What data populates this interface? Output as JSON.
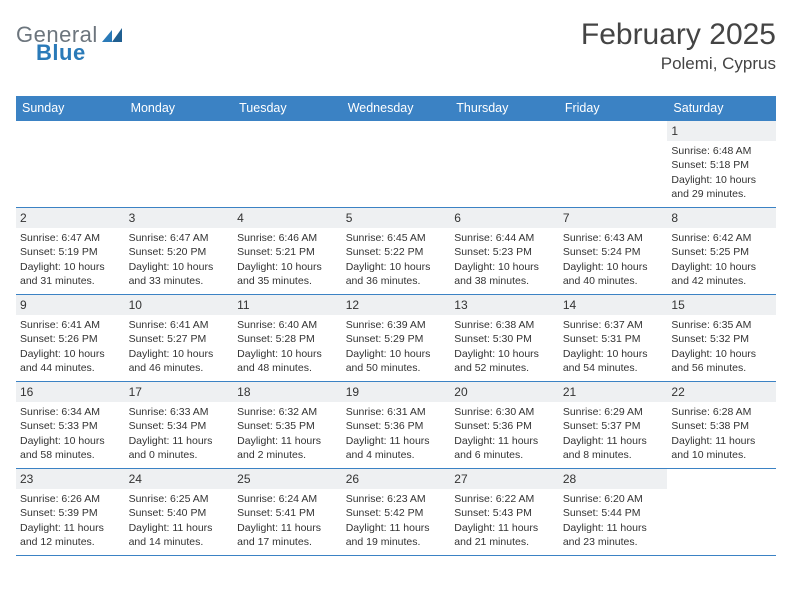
{
  "logo": {
    "text1": "General",
    "text2": "Blue"
  },
  "title": "February 2025",
  "location": "Polemi, Cyprus",
  "colors": {
    "header_bar": "#3b82c4",
    "daynum_bg": "#eef0f2",
    "logo_gray": "#6c757d",
    "logo_blue": "#2a7ab8",
    "rule": "#3b82c4",
    "text": "#333333",
    "bg": "#ffffff"
  },
  "days_of_week": [
    "Sunday",
    "Monday",
    "Tuesday",
    "Wednesday",
    "Thursday",
    "Friday",
    "Saturday"
  ],
  "weeks": [
    [
      {
        "n": "",
        "sunrise": "",
        "sunset": "",
        "daylight": ""
      },
      {
        "n": "",
        "sunrise": "",
        "sunset": "",
        "daylight": ""
      },
      {
        "n": "",
        "sunrise": "",
        "sunset": "",
        "daylight": ""
      },
      {
        "n": "",
        "sunrise": "",
        "sunset": "",
        "daylight": ""
      },
      {
        "n": "",
        "sunrise": "",
        "sunset": "",
        "daylight": ""
      },
      {
        "n": "",
        "sunrise": "",
        "sunset": "",
        "daylight": ""
      },
      {
        "n": "1",
        "sunrise": "Sunrise: 6:48 AM",
        "sunset": "Sunset: 5:18 PM",
        "daylight": "Daylight: 10 hours and 29 minutes."
      }
    ],
    [
      {
        "n": "2",
        "sunrise": "Sunrise: 6:47 AM",
        "sunset": "Sunset: 5:19 PM",
        "daylight": "Daylight: 10 hours and 31 minutes."
      },
      {
        "n": "3",
        "sunrise": "Sunrise: 6:47 AM",
        "sunset": "Sunset: 5:20 PM",
        "daylight": "Daylight: 10 hours and 33 minutes."
      },
      {
        "n": "4",
        "sunrise": "Sunrise: 6:46 AM",
        "sunset": "Sunset: 5:21 PM",
        "daylight": "Daylight: 10 hours and 35 minutes."
      },
      {
        "n": "5",
        "sunrise": "Sunrise: 6:45 AM",
        "sunset": "Sunset: 5:22 PM",
        "daylight": "Daylight: 10 hours and 36 minutes."
      },
      {
        "n": "6",
        "sunrise": "Sunrise: 6:44 AM",
        "sunset": "Sunset: 5:23 PM",
        "daylight": "Daylight: 10 hours and 38 minutes."
      },
      {
        "n": "7",
        "sunrise": "Sunrise: 6:43 AM",
        "sunset": "Sunset: 5:24 PM",
        "daylight": "Daylight: 10 hours and 40 minutes."
      },
      {
        "n": "8",
        "sunrise": "Sunrise: 6:42 AM",
        "sunset": "Sunset: 5:25 PM",
        "daylight": "Daylight: 10 hours and 42 minutes."
      }
    ],
    [
      {
        "n": "9",
        "sunrise": "Sunrise: 6:41 AM",
        "sunset": "Sunset: 5:26 PM",
        "daylight": "Daylight: 10 hours and 44 minutes."
      },
      {
        "n": "10",
        "sunrise": "Sunrise: 6:41 AM",
        "sunset": "Sunset: 5:27 PM",
        "daylight": "Daylight: 10 hours and 46 minutes."
      },
      {
        "n": "11",
        "sunrise": "Sunrise: 6:40 AM",
        "sunset": "Sunset: 5:28 PM",
        "daylight": "Daylight: 10 hours and 48 minutes."
      },
      {
        "n": "12",
        "sunrise": "Sunrise: 6:39 AM",
        "sunset": "Sunset: 5:29 PM",
        "daylight": "Daylight: 10 hours and 50 minutes."
      },
      {
        "n": "13",
        "sunrise": "Sunrise: 6:38 AM",
        "sunset": "Sunset: 5:30 PM",
        "daylight": "Daylight: 10 hours and 52 minutes."
      },
      {
        "n": "14",
        "sunrise": "Sunrise: 6:37 AM",
        "sunset": "Sunset: 5:31 PM",
        "daylight": "Daylight: 10 hours and 54 minutes."
      },
      {
        "n": "15",
        "sunrise": "Sunrise: 6:35 AM",
        "sunset": "Sunset: 5:32 PM",
        "daylight": "Daylight: 10 hours and 56 minutes."
      }
    ],
    [
      {
        "n": "16",
        "sunrise": "Sunrise: 6:34 AM",
        "sunset": "Sunset: 5:33 PM",
        "daylight": "Daylight: 10 hours and 58 minutes."
      },
      {
        "n": "17",
        "sunrise": "Sunrise: 6:33 AM",
        "sunset": "Sunset: 5:34 PM",
        "daylight": "Daylight: 11 hours and 0 minutes."
      },
      {
        "n": "18",
        "sunrise": "Sunrise: 6:32 AM",
        "sunset": "Sunset: 5:35 PM",
        "daylight": "Daylight: 11 hours and 2 minutes."
      },
      {
        "n": "19",
        "sunrise": "Sunrise: 6:31 AM",
        "sunset": "Sunset: 5:36 PM",
        "daylight": "Daylight: 11 hours and 4 minutes."
      },
      {
        "n": "20",
        "sunrise": "Sunrise: 6:30 AM",
        "sunset": "Sunset: 5:36 PM",
        "daylight": "Daylight: 11 hours and 6 minutes."
      },
      {
        "n": "21",
        "sunrise": "Sunrise: 6:29 AM",
        "sunset": "Sunset: 5:37 PM",
        "daylight": "Daylight: 11 hours and 8 minutes."
      },
      {
        "n": "22",
        "sunrise": "Sunrise: 6:28 AM",
        "sunset": "Sunset: 5:38 PM",
        "daylight": "Daylight: 11 hours and 10 minutes."
      }
    ],
    [
      {
        "n": "23",
        "sunrise": "Sunrise: 6:26 AM",
        "sunset": "Sunset: 5:39 PM",
        "daylight": "Daylight: 11 hours and 12 minutes."
      },
      {
        "n": "24",
        "sunrise": "Sunrise: 6:25 AM",
        "sunset": "Sunset: 5:40 PM",
        "daylight": "Daylight: 11 hours and 14 minutes."
      },
      {
        "n": "25",
        "sunrise": "Sunrise: 6:24 AM",
        "sunset": "Sunset: 5:41 PM",
        "daylight": "Daylight: 11 hours and 17 minutes."
      },
      {
        "n": "26",
        "sunrise": "Sunrise: 6:23 AM",
        "sunset": "Sunset: 5:42 PM",
        "daylight": "Daylight: 11 hours and 19 minutes."
      },
      {
        "n": "27",
        "sunrise": "Sunrise: 6:22 AM",
        "sunset": "Sunset: 5:43 PM",
        "daylight": "Daylight: 11 hours and 21 minutes."
      },
      {
        "n": "28",
        "sunrise": "Sunrise: 6:20 AM",
        "sunset": "Sunset: 5:44 PM",
        "daylight": "Daylight: 11 hours and 23 minutes."
      },
      {
        "n": "",
        "sunrise": "",
        "sunset": "",
        "daylight": ""
      }
    ]
  ]
}
